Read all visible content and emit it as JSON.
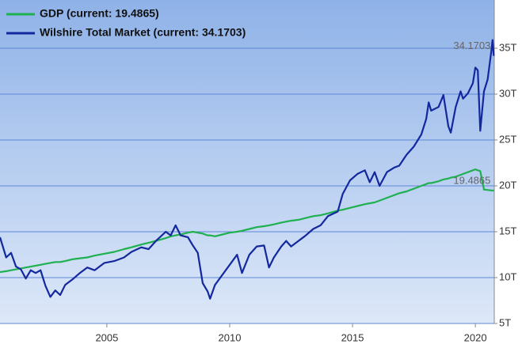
{
  "chart_data": {
    "type": "line",
    "x": [
      2000.65,
      2000.9,
      2001.1,
      2001.3,
      2001.5,
      2001.7,
      2001.9,
      2002.1,
      2002.3,
      2002.5,
      2002.7,
      2002.9,
      2003.1,
      2003.3,
      2003.6,
      2003.9,
      2004.2,
      2004.5,
      2004.9,
      2005.3,
      2005.7,
      2006.0,
      2006.4,
      2006.7,
      2007.0,
      2007.4,
      2007.6,
      2007.8,
      2008.0,
      2008.3,
      2008.5,
      2008.7,
      2008.9,
      2009.1,
      2009.2,
      2009.4,
      2009.7,
      2010.0,
      2010.3,
      2010.5,
      2010.8,
      2011.1,
      2011.4,
      2011.6,
      2011.8,
      2012.1,
      2012.3,
      2012.5,
      2012.8,
      2013.1,
      2013.4,
      2013.7,
      2014.0,
      2014.4,
      2014.6,
      2014.9,
      2015.2,
      2015.5,
      2015.7,
      2015.9,
      2016.1,
      2016.4,
      2016.7,
      2016.9,
      2017.2,
      2017.5,
      2017.8,
      2018.0,
      2018.1,
      2018.2,
      2018.5,
      2018.7,
      2018.9,
      2019.0,
      2019.2,
      2019.4,
      2019.5,
      2019.7,
      2019.9,
      2020.0,
      2020.1,
      2020.2,
      2020.35,
      2020.5,
      2020.65,
      2020.7,
      2020.75
    ],
    "series": [
      {
        "name": "GDP (current: 19.4865)",
        "color": "#1fb04f",
        "values": [
          10.6,
          10.7,
          10.8,
          10.9,
          11.0,
          11.1,
          11.2,
          11.3,
          11.4,
          11.5,
          11.6,
          11.7,
          11.7,
          11.8,
          12.0,
          12.1,
          12.2,
          12.4,
          12.6,
          12.8,
          13.1,
          13.3,
          13.6,
          13.8,
          14.0,
          14.3,
          14.5,
          14.6,
          14.7,
          14.9,
          15.0,
          14.9,
          14.8,
          14.6,
          14.6,
          14.5,
          14.7,
          14.9,
          15.0,
          15.1,
          15.3,
          15.5,
          15.6,
          15.7,
          15.8,
          16.0,
          16.1,
          16.2,
          16.3,
          16.5,
          16.7,
          16.8,
          17.0,
          17.3,
          17.4,
          17.6,
          17.8,
          18.0,
          18.1,
          18.2,
          18.4,
          18.7,
          19.0,
          19.2,
          19.4,
          19.7,
          20.0,
          20.2,
          20.3,
          20.3,
          20.5,
          20.7,
          20.8,
          20.9,
          21.0,
          21.2,
          21.3,
          21.5,
          21.7,
          21.8,
          21.7,
          21.6,
          19.6,
          19.55,
          19.5,
          19.5,
          19.4865
        ]
      },
      {
        "name": "Wilshire Total Market (current: 34.1703)",
        "color": "#14289e",
        "values": [
          14.4,
          12.2,
          12.7,
          11.2,
          10.9,
          9.9,
          10.8,
          10.5,
          10.8,
          9.1,
          7.9,
          8.6,
          8.1,
          9.2,
          9.8,
          10.5,
          11.1,
          10.8,
          11.6,
          11.8,
          12.2,
          12.8,
          13.3,
          13.1,
          14.0,
          15.0,
          14.6,
          15.7,
          14.6,
          14.4,
          13.5,
          12.7,
          9.4,
          8.5,
          7.7,
          9.2,
          10.3,
          11.4,
          12.5,
          10.5,
          12.5,
          13.4,
          13.5,
          11.1,
          12.2,
          13.4,
          14.0,
          13.4,
          14.0,
          14.6,
          15.3,
          15.7,
          16.7,
          17.2,
          19.1,
          20.6,
          21.3,
          21.7,
          20.4,
          21.5,
          20.0,
          21.5,
          22.0,
          22.2,
          23.4,
          24.3,
          25.6,
          27.3,
          29.1,
          28.2,
          28.6,
          29.9,
          26.5,
          25.8,
          28.6,
          30.3,
          29.5,
          30.1,
          31.2,
          32.9,
          32.6,
          26.0,
          30.3,
          31.6,
          34.7,
          35.9,
          34.1703
        ]
      }
    ],
    "xlim": [
      2000.65,
      2020.77
    ],
    "xticks": [
      2005,
      2010,
      2015,
      2020
    ],
    "ylim": [
      5,
      40.26
    ],
    "yticks": [
      {
        "value": 5,
        "label": "5T"
      },
      {
        "value": 10,
        "label": "10T"
      },
      {
        "value": 15,
        "label": "15T"
      },
      {
        "value": 20,
        "label": "20T"
      },
      {
        "value": 25,
        "label": "25T"
      },
      {
        "value": 30,
        "label": "30T"
      },
      {
        "value": 35,
        "label": "35T"
      }
    ],
    "grid": true,
    "legend": "top-left"
  }
}
